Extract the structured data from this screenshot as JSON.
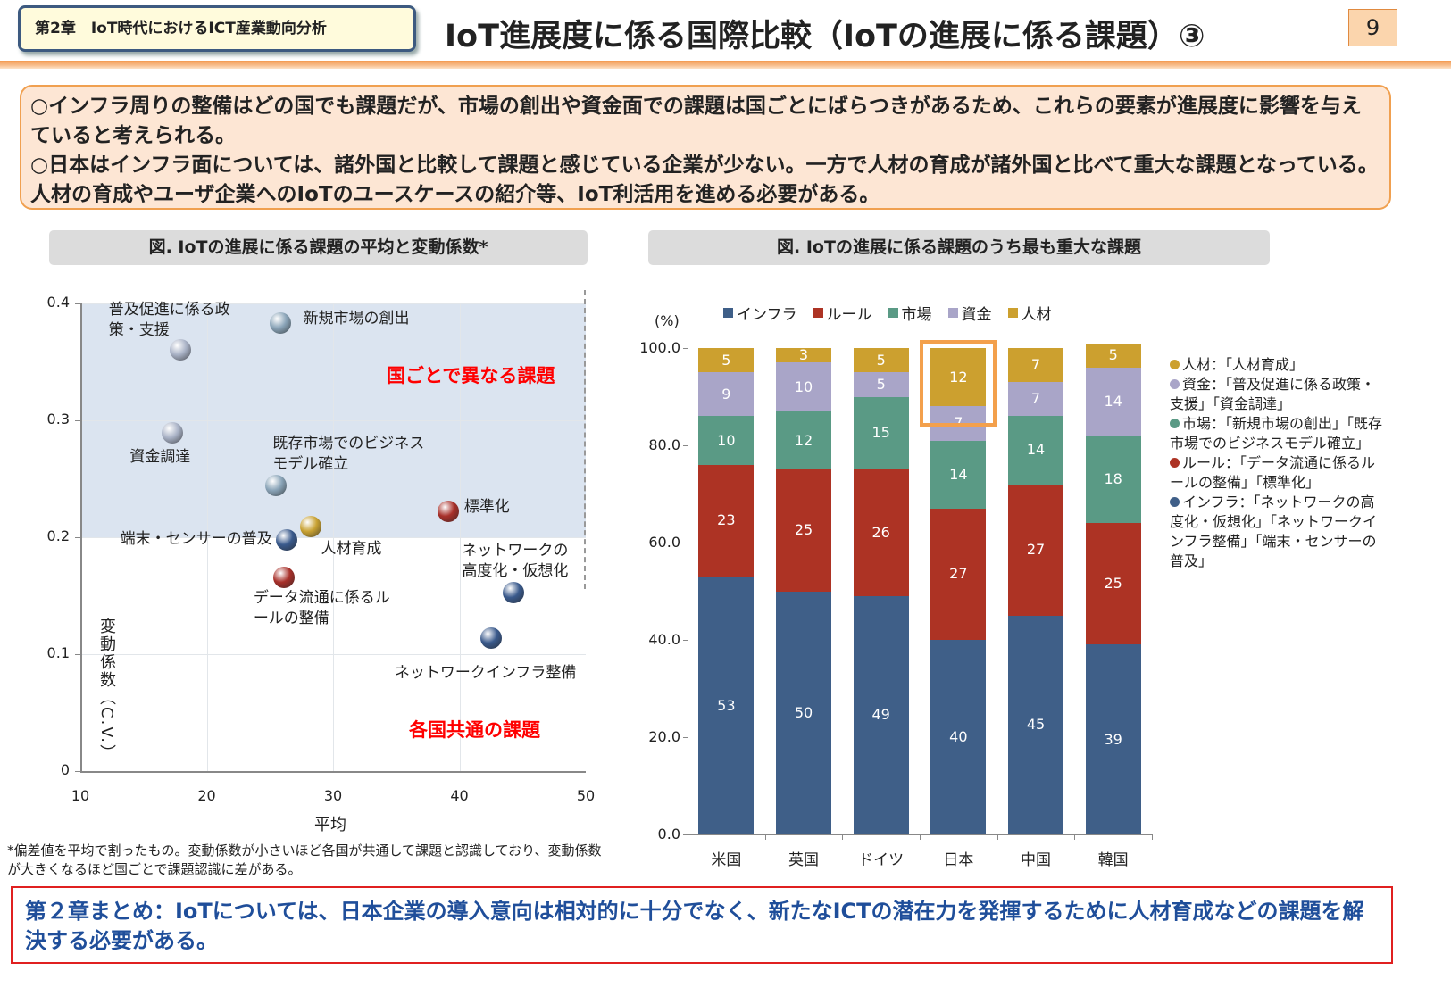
{
  "header": {
    "chapter": "第2章　IoT時代におけるICT産業動向分析",
    "title": "IoT進展度に係る国際比較（IoTの進展に係る課題）③",
    "page": "9"
  },
  "summary": {
    "lines": [
      "○インフラ周りの整備はどの国でも課題だが、市場の創出や資金面での課題は国ごとにばらつきがあるため、これらの要素が進展度に影響を与えていると考えられる。",
      "○日本はインフラ面については、諸外国と比較して課題と感じている企業が少ない。一方で人材の育成が諸外国と比べて重大な課題となっている。人材の育成やユーザ企業へのIoTのユースケースの紹介等、IoT利活用を進める必要がある。"
    ]
  },
  "footnote": "*偏差値を平均で割ったもの。変動係数が小さいほど各国が共通して課題と認識しており、変動係数が大きくなるほど国ごとで課題認識に差がある。",
  "bottom": "第２章まとめ：IoTについては、日本企業の導入意向は相対的に十分でなく、新たなICTの潜在力を発揮するために人材育成などの課題を解決する必要がある。",
  "chart_data": [
    {
      "type": "scatter",
      "title": "図. IoTの進展に係る課題の平均と変動係数*",
      "xlabel": "平均",
      "ylabel": "変動係数（C.V.）",
      "xlim": [
        10,
        50
      ],
      "ylim": [
        0,
        0.4
      ],
      "xticks": [
        "10",
        "20",
        "30",
        "40",
        "50"
      ],
      "yticks": [
        "0",
        "0.1",
        "0.2",
        "0.3",
        "0.4"
      ],
      "shaded_region": {
        "y": [
          0.2,
          0.4
        ],
        "label": "国ごとで異なる課題"
      },
      "lower_region_label": "各国共通の課題",
      "grid": true,
      "colors": {
        "インフラ": "#3a5a8c",
        "ルール": "#a8302a",
        "市場": "#8aa4b8",
        "資金": "#a9b2c6",
        "人材": "#c9a233"
      },
      "points": [
        {
          "label": "普及促進に係る政策・支援",
          "x": 17.9,
          "y": 0.36,
          "group": "資金"
        },
        {
          "label": "新規市場の創出",
          "x": 25.8,
          "y": 0.383,
          "group": "市場"
        },
        {
          "label": "資金調達",
          "x": 17.3,
          "y": 0.289,
          "group": "資金"
        },
        {
          "label": "既存市場でのビジネスモデル確立",
          "x": 25.5,
          "y": 0.244,
          "group": "市場"
        },
        {
          "label": "標準化",
          "x": 39.1,
          "y": 0.222,
          "group": "ルール"
        },
        {
          "label": "人材育成",
          "x": 28.2,
          "y": 0.209,
          "group": "人材"
        },
        {
          "label": "端末・センサーの普及",
          "x": 26.3,
          "y": 0.198,
          "group": "インフラ"
        },
        {
          "label": "データ流通に係るルールの整備",
          "x": 26.1,
          "y": 0.166,
          "group": "ルール"
        },
        {
          "label": "ネットワークの高度化・仮想化",
          "x": 44.3,
          "y": 0.153,
          "group": "インフラ"
        },
        {
          "label": "ネットワークインフラ整備",
          "x": 42.5,
          "y": 0.114,
          "group": "インフラ"
        }
      ]
    },
    {
      "type": "bar",
      "stacked": true,
      "title": "図. IoTの進展に係る課題のうち最も重大な課題",
      "ylabel": "(%)",
      "ylim": [
        0,
        100
      ],
      "yticks": [
        "0.0",
        "20.0",
        "40.0",
        "60.0",
        "80.0",
        "100.0"
      ],
      "categories": [
        "米国",
        "英国",
        "ドイツ",
        "日本",
        "中国",
        "韓国"
      ],
      "series": [
        {
          "name": "インフラ",
          "color": "#3f5f88",
          "values": [
            53,
            50,
            49,
            40,
            45,
            39
          ]
        },
        {
          "name": "ルール",
          "color": "#ad3324",
          "values": [
            23,
            25,
            26,
            27,
            27,
            25
          ]
        },
        {
          "name": "市場",
          "color": "#5a9a85",
          "values": [
            10,
            12,
            15,
            14,
            14,
            18
          ]
        },
        {
          "name": "資金",
          "color": "#a9a5c8",
          "values": [
            9,
            10,
            5,
            7,
            7,
            14
          ]
        },
        {
          "name": "人材",
          "color": "#cca02f",
          "values": [
            5,
            3,
            5,
            12,
            7,
            5
          ]
        }
      ],
      "highlight": {
        "category": "日本",
        "series": "人材",
        "color": "#f3a04c"
      },
      "definitions": [
        {
          "series": "人材",
          "text": "人材：「人材育成」"
        },
        {
          "series": "資金",
          "text": "資金：「普及促進に係る政策・支援」「資金調達」"
        },
        {
          "series": "市場",
          "text": "市場：「新規市場の創出」「既存市場でのビジネスモデル確立」"
        },
        {
          "series": "ルール",
          "text": "ルール：「データ流通に係るルールの整備」「標準化」"
        },
        {
          "series": "インフラ",
          "text": "インフラ：「ネットワークの高度化・仮想化」「ネットワークインフラ整備」「端末・センサーの普及」"
        }
      ]
    }
  ]
}
